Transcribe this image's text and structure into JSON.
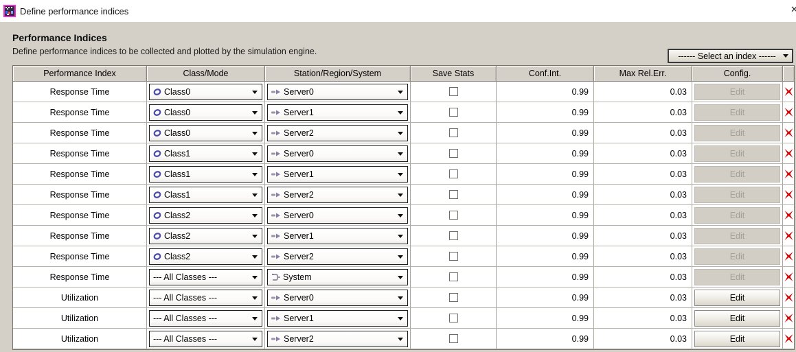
{
  "window": {
    "title": "Define performance indices",
    "app_icon": "jmt-sim-icon",
    "close_icon": "close-x-icon"
  },
  "header": {
    "title": "Performance Indices",
    "subtitle": "Define performance indices to be collected and plotted by the simulation engine."
  },
  "index_selector": {
    "value": "------ Select an index ------",
    "icon": "chevron-down-icon"
  },
  "icons": {
    "class": "class-ring-icon",
    "server": "server-arrow-icon",
    "system": "system-bracket-icon",
    "delete": "delete-x-icon",
    "dropdown": "chevron-down-icon"
  },
  "colors": {
    "dialog_background": "#d4d0c8",
    "titlebar_background": "#ffffff",
    "row_background": "#ffffff",
    "delete_icon_red": "#d40000",
    "class_icon_purple": "#4b4ba8",
    "station_icon_gray": "#9a94a8",
    "station_icon_purple": "#8a7fa8"
  },
  "table": {
    "columns": [
      "Performance Index",
      "Class/Mode",
      "Station/Region/System",
      "Save Stats",
      "Conf.Int.",
      "Max Rel.Err.",
      "Config."
    ],
    "delete_column_label": "",
    "edit_label": "Edit",
    "rows": [
      {
        "index": "Response Time",
        "class_mode": "Class0",
        "class_icon": true,
        "station": "Server0",
        "station_icon": "server",
        "save_stats": false,
        "conf_int": "0.99",
        "max_rel_err": "0.03",
        "config_enabled": false
      },
      {
        "index": "Response Time",
        "class_mode": "Class0",
        "class_icon": true,
        "station": "Server1",
        "station_icon": "server",
        "save_stats": false,
        "conf_int": "0.99",
        "max_rel_err": "0.03",
        "config_enabled": false
      },
      {
        "index": "Response Time",
        "class_mode": "Class0",
        "class_icon": true,
        "station": "Server2",
        "station_icon": "server",
        "save_stats": false,
        "conf_int": "0.99",
        "max_rel_err": "0.03",
        "config_enabled": false
      },
      {
        "index": "Response Time",
        "class_mode": "Class1",
        "class_icon": true,
        "station": "Server0",
        "station_icon": "server",
        "save_stats": false,
        "conf_int": "0.99",
        "max_rel_err": "0.03",
        "config_enabled": false
      },
      {
        "index": "Response Time",
        "class_mode": "Class1",
        "class_icon": true,
        "station": "Server1",
        "station_icon": "server",
        "save_stats": false,
        "conf_int": "0.99",
        "max_rel_err": "0.03",
        "config_enabled": false
      },
      {
        "index": "Response Time",
        "class_mode": "Class1",
        "class_icon": true,
        "station": "Server2",
        "station_icon": "server",
        "save_stats": false,
        "conf_int": "0.99",
        "max_rel_err": "0.03",
        "config_enabled": false
      },
      {
        "index": "Response Time",
        "class_mode": "Class2",
        "class_icon": true,
        "station": "Server0",
        "station_icon": "server",
        "save_stats": false,
        "conf_int": "0.99",
        "max_rel_err": "0.03",
        "config_enabled": false
      },
      {
        "index": "Response Time",
        "class_mode": "Class2",
        "class_icon": true,
        "station": "Server1",
        "station_icon": "server",
        "save_stats": false,
        "conf_int": "0.99",
        "max_rel_err": "0.03",
        "config_enabled": false
      },
      {
        "index": "Response Time",
        "class_mode": "Class2",
        "class_icon": true,
        "station": "Server2",
        "station_icon": "server",
        "save_stats": false,
        "conf_int": "0.99",
        "max_rel_err": "0.03",
        "config_enabled": false
      },
      {
        "index": "Response Time",
        "class_mode": "--- All Classes ---",
        "class_icon": false,
        "station": "System",
        "station_icon": "system",
        "save_stats": false,
        "conf_int": "0.99",
        "max_rel_err": "0.03",
        "config_enabled": false
      },
      {
        "index": "Utilization",
        "class_mode": "--- All Classes ---",
        "class_icon": false,
        "station": "Server0",
        "station_icon": "server",
        "save_stats": false,
        "conf_int": "0.99",
        "max_rel_err": "0.03",
        "config_enabled": true
      },
      {
        "index": "Utilization",
        "class_mode": "--- All Classes ---",
        "class_icon": false,
        "station": "Server1",
        "station_icon": "server",
        "save_stats": false,
        "conf_int": "0.99",
        "max_rel_err": "0.03",
        "config_enabled": true
      },
      {
        "index": "Utilization",
        "class_mode": "--- All Classes ---",
        "class_icon": false,
        "station": "Server2",
        "station_icon": "server",
        "save_stats": false,
        "conf_int": "0.99",
        "max_rel_err": "0.03",
        "config_enabled": true
      }
    ]
  }
}
